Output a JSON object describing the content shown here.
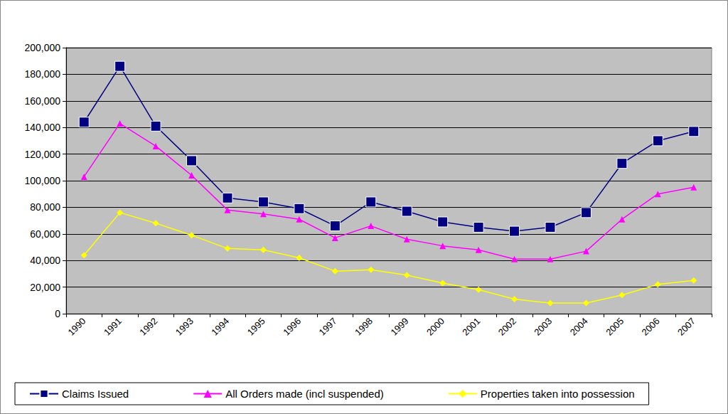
{
  "chart_data": {
    "type": "line",
    "categories": [
      "1990",
      "1991",
      "1992",
      "1993",
      "1994",
      "1995",
      "1996",
      "1997",
      "1998",
      "1999",
      "2000",
      "2001",
      "2002",
      "2003",
      "2004",
      "2005",
      "2006",
      "2007"
    ],
    "series": [
      {
        "name": "Claims Issued",
        "color": "#000080",
        "marker": "square",
        "values": [
          144000,
          186000,
          141000,
          115000,
          87000,
          84000,
          79000,
          66000,
          84000,
          77000,
          69000,
          65000,
          62000,
          65000,
          76000,
          113000,
          130000,
          137000
        ]
      },
      {
        "name": "All Orders made (incl suspended)",
        "color": "#ff00ff",
        "marker": "triangle",
        "values": [
          103000,
          143000,
          126000,
          104000,
          78000,
          75000,
          71000,
          57000,
          66000,
          56000,
          51000,
          48000,
          41000,
          41000,
          47000,
          71000,
          90000,
          95000
        ]
      },
      {
        "name": "Properties taken into possession",
        "color": "#ffff00",
        "marker": "diamond",
        "values": [
          44000,
          76000,
          68000,
          59000,
          49000,
          48000,
          42000,
          32000,
          33000,
          29000,
          23000,
          18000,
          11000,
          8000,
          8000,
          14000,
          22000,
          25000
        ]
      }
    ],
    "ylim": [
      0,
      200000
    ],
    "yticks": [
      0,
      {
        "value": 20000,
        "label": "20,000"
      },
      {
        "value": 40000,
        "label": "40,000"
      },
      {
        "value": 60000,
        "label": "60,000"
      },
      {
        "value": 80000,
        "label": "80,000"
      },
      {
        "value": 100000,
        "label": "100,000"
      },
      {
        "value": 120000,
        "label": "120,000"
      },
      {
        "value": 140000,
        "label": "140,000"
      },
      {
        "value": 160000,
        "label": "160,000"
      },
      {
        "value": 180000,
        "label": "180,000"
      },
      {
        "value": 200000,
        "label": "200,000"
      }
    ],
    "grid": true,
    "legend": "bottom"
  }
}
